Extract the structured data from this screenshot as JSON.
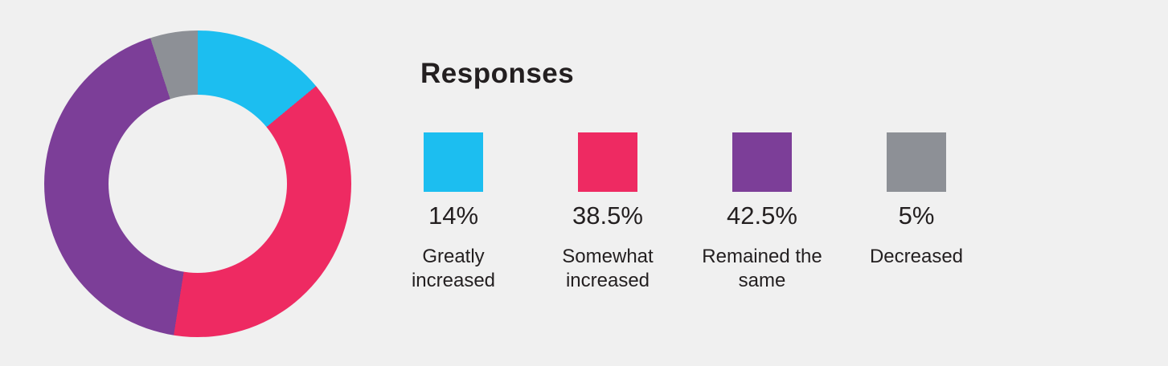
{
  "background_color": "#f0f0f0",
  "text_color": "#231f20",
  "legend": {
    "title": "Responses",
    "items": [
      {
        "percent": "14%",
        "label": "Greatly increased",
        "color": "#1cbef0",
        "swatch": "cyan-swatch"
      },
      {
        "percent": "38.5%",
        "label": "Somewhat increased",
        "color": "#ee2a62",
        "swatch": "pink-swatch"
      },
      {
        "percent": "42.5%",
        "label": "Remained the same",
        "color": "#7c3e98",
        "swatch": "purple-swatch"
      },
      {
        "percent": "5%",
        "label": "Decreased",
        "color": "#8d9096",
        "swatch": "gray-swatch"
      }
    ]
  },
  "chart_data": {
    "type": "pie",
    "subtype": "donut",
    "title": "Responses",
    "categories": [
      "Greatly increased",
      "Somewhat increased",
      "Remained the same",
      "Decreased"
    ],
    "values": [
      14,
      38.5,
      42.5,
      5
    ],
    "unit": "%",
    "colors": [
      "#1cbef0",
      "#ee2a62",
      "#7c3e98",
      "#8d9096"
    ],
    "start_angle_deg": 0,
    "direction": "clockwise",
    "inner_radius_ratio": 0.58,
    "legend_position": "right",
    "data_labels": "shown in legend only"
  }
}
